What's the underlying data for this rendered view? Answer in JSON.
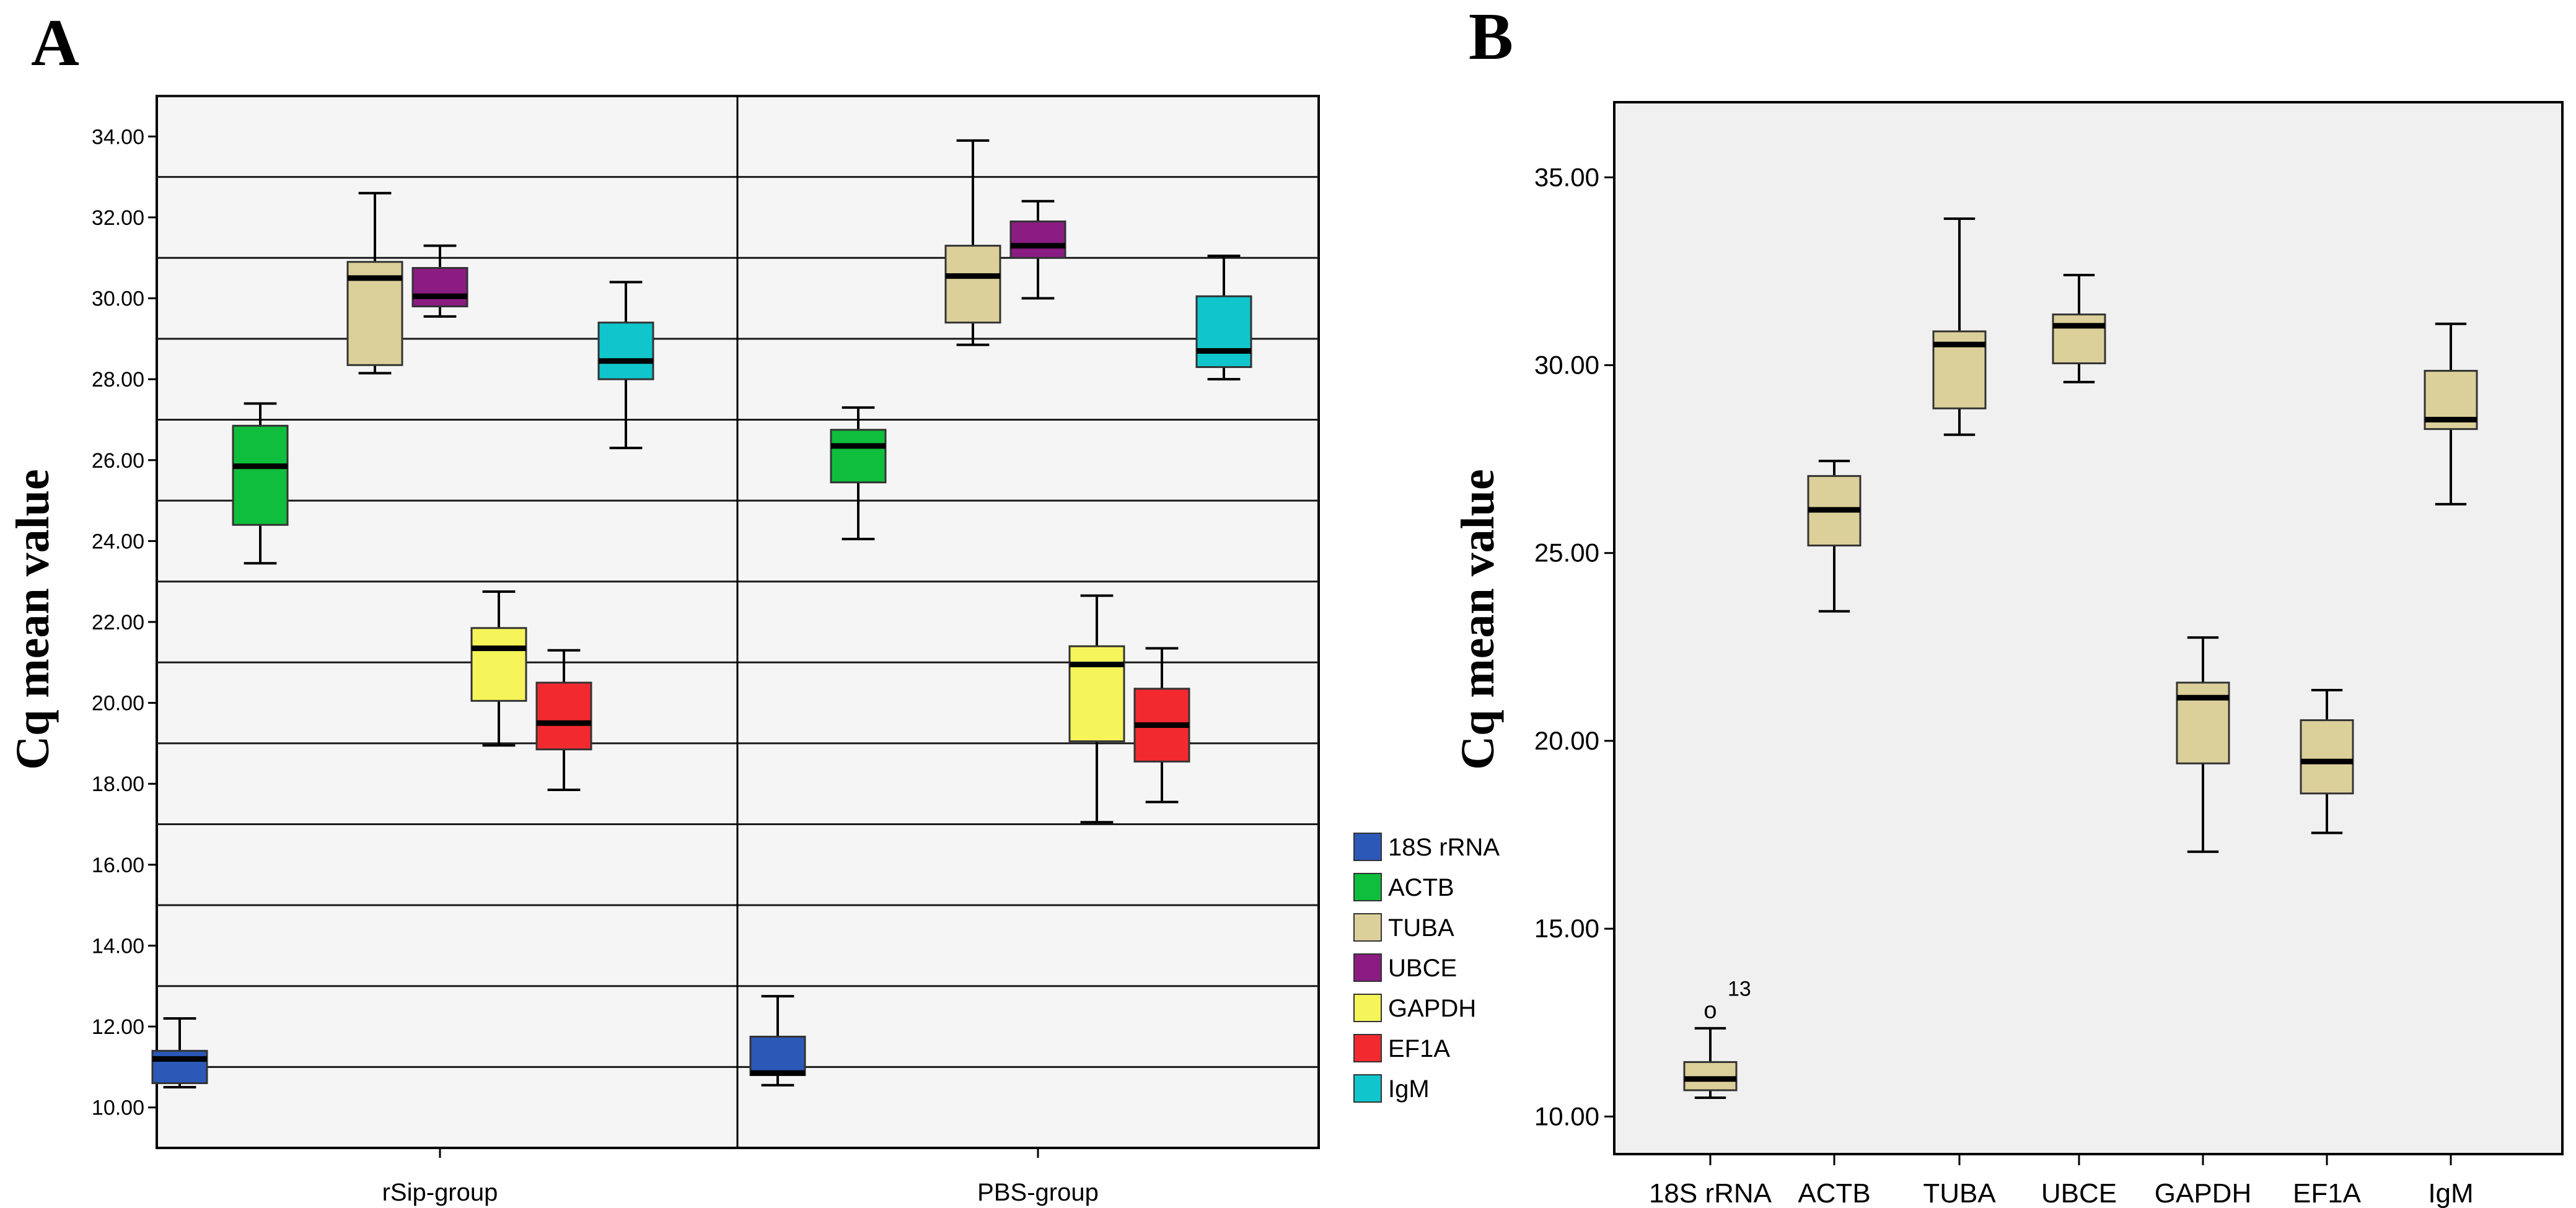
{
  "chart_data": [
    {
      "panel": "A",
      "type": "boxplot",
      "ylabel": "Cq mean value",
      "ylim": [
        9,
        35
      ],
      "yticks": [
        "10.00",
        "12.00",
        "14.00",
        "16.00",
        "18.00",
        "20.00",
        "22.00",
        "24.00",
        "26.00",
        "28.00",
        "30.00",
        "32.00",
        "34.00"
      ],
      "grid_lines_y": [
        11,
        13,
        15,
        17,
        19,
        21,
        23,
        25,
        27,
        29,
        31,
        33,
        35
      ],
      "groups": [
        "rSip-group",
        "PBS-group"
      ],
      "legend": [
        {
          "name": "18S rRNA",
          "color": "#2c58b8"
        },
        {
          "name": "ACTB",
          "color": "#0fbe3c"
        },
        {
          "name": "TUBA",
          "color": "#dcd09a"
        },
        {
          "name": "UBCE",
          "color": "#8a1c82"
        },
        {
          "name": "GAPDH",
          "color": "#f5f55a"
        },
        {
          "name": "EF1A",
          "color": "#f22a30"
        },
        {
          "name": "IgM",
          "color": "#10c6cc"
        }
      ],
      "series": [
        {
          "name": "18S rRNA",
          "color": "#2c58b8",
          "boxes": [
            {
              "group": "rSip-group",
              "min": 10.5,
              "q1": 10.6,
              "median": 11.2,
              "q3": 11.4,
              "max": 12.2
            },
            {
              "group": "PBS-group",
              "min": 10.55,
              "q1": 10.8,
              "median": 10.85,
              "q3": 11.75,
              "max": 12.75
            }
          ]
        },
        {
          "name": "ACTB",
          "color": "#0fbe3c",
          "boxes": [
            {
              "group": "rSip-group",
              "min": 23.45,
              "q1": 24.4,
              "median": 25.85,
              "q3": 26.85,
              "max": 27.4
            },
            {
              "group": "PBS-group",
              "min": 24.05,
              "q1": 25.45,
              "median": 26.35,
              "q3": 26.75,
              "max": 27.3
            }
          ]
        },
        {
          "name": "TUBA",
          "color": "#dcd09a",
          "boxes": [
            {
              "group": "rSip-group",
              "min": 28.15,
              "q1": 28.35,
              "median": 30.5,
              "q3": 30.9,
              "max": 32.6
            },
            {
              "group": "PBS-group",
              "min": 28.85,
              "q1": 29.4,
              "median": 30.55,
              "q3": 31.3,
              "max": 33.9
            }
          ]
        },
        {
          "name": "UBCE",
          "color": "#8a1c82",
          "boxes": [
            {
              "group": "rSip-group",
              "min": 29.55,
              "q1": 29.8,
              "median": 30.05,
              "q3": 30.75,
              "max": 31.3
            },
            {
              "group": "PBS-group",
              "min": 30.0,
              "q1": 31.0,
              "median": 31.3,
              "q3": 31.9,
              "max": 32.4
            }
          ]
        },
        {
          "name": "GAPDH",
          "color": "#f5f55a",
          "boxes": [
            {
              "group": "rSip-group",
              "min": 18.95,
              "q1": 20.05,
              "median": 21.35,
              "q3": 21.85,
              "max": 22.75
            },
            {
              "group": "PBS-group",
              "min": 17.05,
              "q1": 19.05,
              "median": 20.95,
              "q3": 21.4,
              "max": 22.65
            }
          ]
        },
        {
          "name": "EF1A",
          "color": "#f22a30",
          "boxes": [
            {
              "group": "rSip-group",
              "min": 17.85,
              "q1": 18.85,
              "median": 19.5,
              "q3": 20.5,
              "max": 21.3
            },
            {
              "group": "PBS-group",
              "min": 17.55,
              "q1": 18.55,
              "median": 19.45,
              "q3": 20.35,
              "max": 21.35
            }
          ]
        },
        {
          "name": "IgM",
          "color": "#10c6cc",
          "boxes": [
            {
              "group": "rSip-group",
              "min": 26.3,
              "q1": 28.0,
              "median": 28.45,
              "q3": 29.4,
              "max": 30.4
            },
            {
              "group": "PBS-group",
              "min": 28.0,
              "q1": 28.3,
              "median": 28.7,
              "q3": 30.05,
              "max": 31.05
            }
          ]
        }
      ]
    },
    {
      "panel": "B",
      "type": "boxplot",
      "ylabel": "Cq mean value",
      "ylim": [
        9,
        37
      ],
      "yticks": [
        "10.00",
        "15.00",
        "20.00",
        "25.00",
        "30.00",
        "35.00"
      ],
      "categories": [
        "18S rRNA",
        "ACTB",
        "TUBA",
        "UBCE",
        "GAPDH",
        "EF1A",
        "IgM"
      ],
      "box_color": "#dcd09a",
      "boxes": [
        {
          "category": "18S rRNA",
          "min": 10.5,
          "q1": 10.7,
          "median": 11.0,
          "q3": 11.45,
          "max": 12.35,
          "outlier": {
            "value": 12.85,
            "label": "13"
          }
        },
        {
          "category": "ACTB",
          "min": 23.45,
          "q1": 25.2,
          "median": 26.15,
          "q3": 27.05,
          "max": 27.45
        },
        {
          "category": "TUBA",
          "min": 28.15,
          "q1": 28.85,
          "median": 30.55,
          "q3": 30.9,
          "max": 33.9
        },
        {
          "category": "UBCE",
          "min": 29.55,
          "q1": 30.05,
          "median": 31.05,
          "q3": 31.35,
          "max": 32.4
        },
        {
          "category": "GAPDH",
          "min": 17.05,
          "q1": 19.4,
          "median": 21.15,
          "q3": 21.55,
          "max": 22.75
        },
        {
          "category": "EF1A",
          "min": 17.55,
          "q1": 18.6,
          "median": 19.45,
          "q3": 20.55,
          "max": 21.35
        },
        {
          "category": "IgM",
          "min": 26.3,
          "q1": 28.3,
          "median": 28.55,
          "q3": 29.85,
          "max": 31.1
        }
      ]
    }
  ]
}
